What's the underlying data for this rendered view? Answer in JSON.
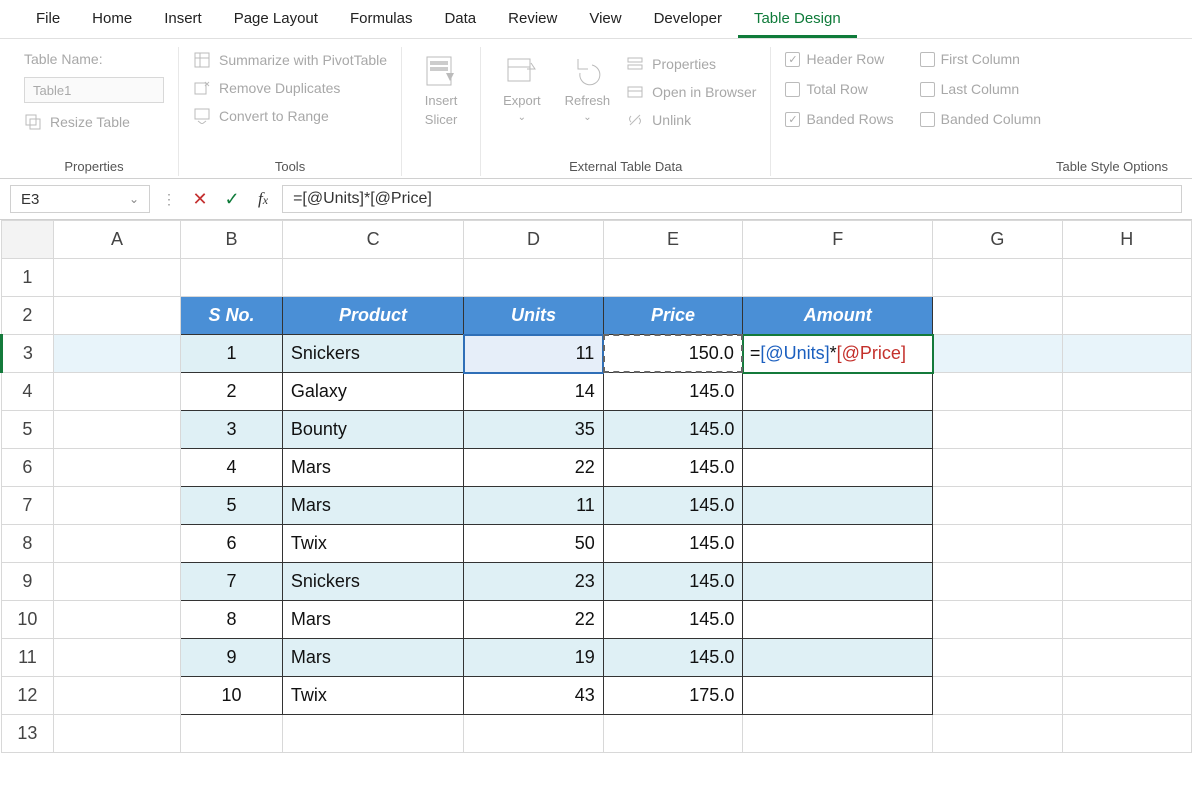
{
  "menubar": [
    "File",
    "Home",
    "Insert",
    "Page Layout",
    "Formulas",
    "Data",
    "Review",
    "View",
    "Developer",
    "Table Design"
  ],
  "menubar_active_index": 9,
  "ribbon": {
    "properties": {
      "group_label": "Properties",
      "table_name_label": "Table Name:",
      "table_name_value": "Table1",
      "resize_label": "Resize Table"
    },
    "tools": {
      "group_label": "Tools",
      "pivot": "Summarize with PivotTable",
      "dup": "Remove Duplicates",
      "convert": "Convert to Range"
    },
    "slicer": {
      "insert": "Insert",
      "slicer": "Slicer"
    },
    "external": {
      "group_label": "External Table Data",
      "export": "Export",
      "refresh": "Refresh",
      "properties": "Properties",
      "open": "Open in Browser",
      "unlink": "Unlink"
    },
    "style_options": {
      "group_label": "Table Style Options",
      "header": "Header Row",
      "total": "Total Row",
      "banded_rows": "Banded Rows",
      "first_col": "First Column",
      "last_col": "Last Column",
      "banded_cols": "Banded Column"
    }
  },
  "formula_bar": {
    "name_box": "E3",
    "formula": "=[@Units]*[@Price]"
  },
  "columns": [
    "A",
    "B",
    "C",
    "D",
    "E",
    "F",
    "G",
    "H"
  ],
  "row_count": 13,
  "table": {
    "header_row": 2,
    "start_col": "B",
    "headers": [
      "S No.",
      "Product",
      "Units",
      "Price",
      "Amount"
    ],
    "band_color": "#dff0f5",
    "header_bg": "#4a8fd6",
    "rows": [
      {
        "sno": "1",
        "product": "Snickers",
        "units": "11",
        "price": "150.0",
        "amount": ""
      },
      {
        "sno": "2",
        "product": "Galaxy",
        "units": "14",
        "price": "145.0",
        "amount": ""
      },
      {
        "sno": "3",
        "product": "Bounty",
        "units": "35",
        "price": "145.0",
        "amount": ""
      },
      {
        "sno": "4",
        "product": "Mars",
        "units": "22",
        "price": "145.0",
        "amount": ""
      },
      {
        "sno": "5",
        "product": "Mars",
        "units": "11",
        "price": "145.0",
        "amount": ""
      },
      {
        "sno": "6",
        "product": "Twix",
        "units": "50",
        "price": "145.0",
        "amount": ""
      },
      {
        "sno": "7",
        "product": "Snickers",
        "units": "23",
        "price": "145.0",
        "amount": ""
      },
      {
        "sno": "8",
        "product": "Mars",
        "units": "22",
        "price": "145.0",
        "amount": ""
      },
      {
        "sno": "9",
        "product": "Mars",
        "units": "19",
        "price": "145.0",
        "amount": ""
      },
      {
        "sno": "10",
        "product": "Twix",
        "units": "43",
        "price": "175.0",
        "amount": ""
      }
    ]
  },
  "editing": {
    "cell": "F3",
    "display_parts": [
      "=",
      "[@Units]",
      "*",
      "[@Price]"
    ],
    "part_colors": [
      "#111",
      "#1b5fbf",
      "#111",
      "#c4302b"
    ]
  }
}
